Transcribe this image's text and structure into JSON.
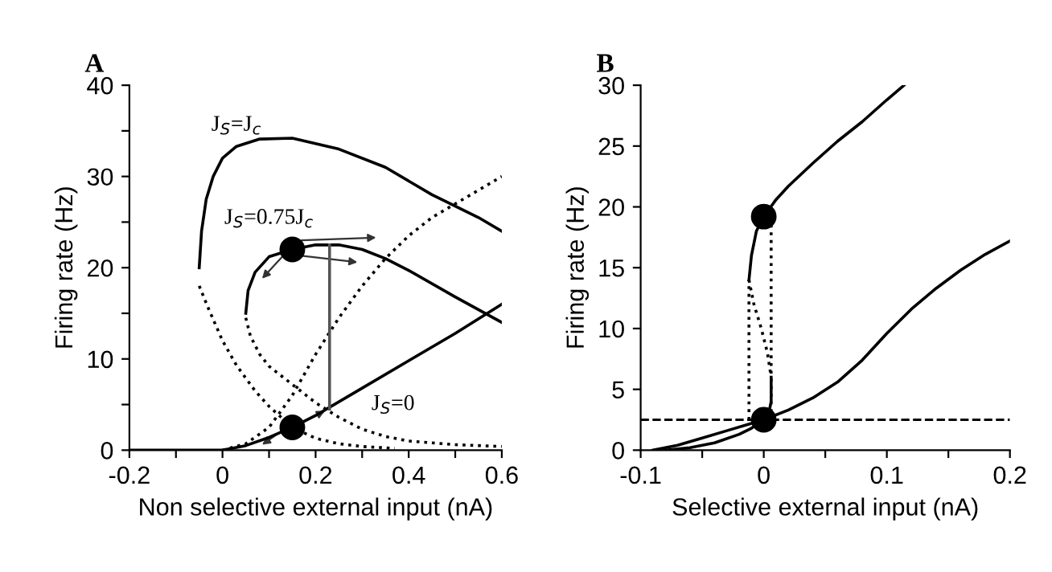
{
  "chart_data": [
    {
      "type": "line",
      "title": "A",
      "xlabel": "Non selective external input (nA)",
      "ylabel": "Firing rate (Hz)",
      "xlim": [
        -0.2,
        0.6
      ],
      "ylim": [
        0,
        40
      ],
      "xticks": [
        -0.2,
        {
          "value": -0.1,
          "label": null
        },
        0,
        {
          "value": 0.1,
          "label": null
        },
        0.2,
        {
          "value": 0.3,
          "label": null
        },
        0.4,
        {
          "value": 0.5,
          "label": null
        },
        0.6
      ],
      "yticks": [
        0,
        {
          "value": 5,
          "label": null
        },
        10,
        {
          "value": 15,
          "label": null
        },
        20,
        {
          "value": 25,
          "label": null
        },
        30,
        {
          "value": 35,
          "label": null
        },
        40
      ],
      "grid": false,
      "legend": false,
      "series": [
        {
          "color": "#000000",
          "line_style": "solid",
          "x": [
            -0.05,
            -0.045,
            -0.035,
            -0.02,
            0.0,
            0.03,
            0.08,
            0.15,
            0.25,
            0.35,
            0.45,
            0.55,
            0.6
          ],
          "values": [
            20,
            24,
            27.5,
            30,
            32,
            33.3,
            34.1,
            34.2,
            33,
            31,
            28,
            25.5,
            24
          ]
        },
        {
          "color": "#000000",
          "line_style": "dotted",
          "x": [
            -0.05,
            -0.03,
            0.0,
            0.03,
            0.07,
            0.1,
            0.15,
            0.2,
            0.25,
            0.3,
            0.37
          ],
          "values": [
            18,
            15.5,
            12,
            9.3,
            6.5,
            4.8,
            2.5,
            1.3,
            0.7,
            0.4,
            0.2
          ]
        },
        {
          "color": "#000000",
          "line_style": "solid",
          "x": [
            0.05,
            0.055,
            0.07,
            0.1,
            0.15,
            0.2,
            0.25,
            0.3,
            0.35,
            0.4,
            0.5,
            0.6
          ],
          "values": [
            15,
            17.5,
            19.5,
            21.2,
            22,
            22.5,
            22.5,
            22,
            21,
            19.7,
            16.8,
            14
          ]
        },
        {
          "color": "#000000",
          "line_style": "dotted",
          "x": [
            0.05,
            0.06,
            0.08,
            0.1,
            0.15,
            0.2,
            0.25,
            0.3,
            0.35,
            0.4,
            0.5,
            0.6
          ],
          "values": [
            14.5,
            12.5,
            10.5,
            9.2,
            7.2,
            5.2,
            3.6,
            2.3,
            1.5,
            1,
            0.6,
            0.4
          ]
        },
        {
          "color": "#000000",
          "line_style": "solid",
          "x": [
            -0.2,
            0.0,
            0.05,
            0.1,
            0.15,
            0.2,
            0.3,
            0.4,
            0.5,
            0.6
          ],
          "values": [
            0,
            0,
            0.5,
            1.4,
            2.5,
            3.8,
            6.8,
            9.8,
            12.8,
            16
          ]
        },
        {
          "color": "#000000",
          "line_style": "dotted",
          "x": [
            0.0,
            0.05,
            0.1,
            0.15,
            0.2,
            0.25,
            0.3,
            0.35,
            0.4,
            0.45,
            0.5,
            0.55,
            0.6
          ],
          "values": [
            0,
            0.7,
            2.5,
            6,
            10.5,
            14.5,
            18,
            21,
            23.5,
            25.5,
            27,
            28.5,
            30
          ]
        },
        {
          "color": "#555555",
          "line_style": "solid",
          "x": [
            0.23,
            0.23
          ],
          "values": [
            4.5,
            22.5
          ]
        },
        {
          "type": "scatter",
          "marker": "circle",
          "color": "#000000",
          "x": [
            0.15,
            0.15
          ],
          "values": [
            22,
            2.5
          ]
        }
      ],
      "annotations": [
        "J$_{S}$=J$_{c}$",
        "J$_{S}$=0.75J$_{c}$",
        "J$_{S}$=0"
      ]
    },
    {
      "type": "line",
      "title": "B",
      "xlabel": "Selective external input (nA)",
      "ylabel": "Firing rate (Hz)",
      "xlim": [
        -0.1,
        0.2
      ],
      "ylim": [
        0,
        30
      ],
      "xticks": [
        -0.1,
        {
          "value": -0.05,
          "label": null
        },
        0,
        {
          "value": 0.05,
          "label": null
        },
        0.1,
        {
          "value": 0.15,
          "label": null
        },
        0.2
      ],
      "yticks": [
        0,
        5,
        10,
        15,
        20,
        25,
        30
      ],
      "grid": false,
      "legend": false,
      "ref_lines": [
        {
          "axis": "y",
          "value": 2.5,
          "color": "#000000",
          "line_style": "dashed"
        }
      ],
      "series": [
        {
          "color": "#000000",
          "line_style": "solid",
          "x": [
            -0.012,
            -0.01,
            -0.006,
            0.0,
            0.01,
            0.02,
            0.04,
            0.06,
            0.08,
            0.1,
            0.114
          ],
          "values": [
            14,
            16,
            18,
            19.2,
            20.6,
            21.7,
            23.6,
            25.4,
            27,
            28.8,
            30
          ]
        },
        {
          "color": "#000000",
          "line_style": "dotted",
          "x": [
            -0.012,
            -0.008,
            -0.002,
            0.003,
            0.006
          ],
          "values": [
            14,
            12,
            10,
            8,
            6
          ]
        },
        {
          "color": "#000000",
          "line_style": "solid",
          "x": [
            0.006,
            0.006,
            0.004,
            0.0,
            -0.01,
            -0.02,
            -0.04,
            -0.06,
            -0.08
          ],
          "values": [
            6,
            4,
            3,
            2.5,
            1.8,
            1.3,
            0.6,
            0.2,
            0
          ]
        },
        {
          "color": "#000000",
          "line_style": "solid",
          "x": [
            -0.09,
            -0.07,
            -0.05,
            -0.03,
            -0.01,
            0.0,
            0.02,
            0.04,
            0.06,
            0.08,
            0.1,
            0.12,
            0.14,
            0.16,
            0.18,
            0.2
          ],
          "values": [
            0,
            0.4,
            1.0,
            1.6,
            2.2,
            2.5,
            3.3,
            4.3,
            5.6,
            7.4,
            9.6,
            11.6,
            13.3,
            14.8,
            16.1,
            17.2
          ]
        },
        {
          "color": "#000000",
          "line_style": "dotted",
          "x": [
            -0.012,
            -0.012
          ],
          "values": [
            2.5,
            14
          ]
        },
        {
          "color": "#000000",
          "line_style": "dotted",
          "x": [
            0.006,
            0.006
          ],
          "values": [
            2.5,
            19.2
          ]
        },
        {
          "type": "scatter",
          "marker": "circle",
          "color": "#000000",
          "x": [
            0.0,
            0.0
          ],
          "values": [
            19.2,
            2.5
          ]
        }
      ]
    }
  ]
}
